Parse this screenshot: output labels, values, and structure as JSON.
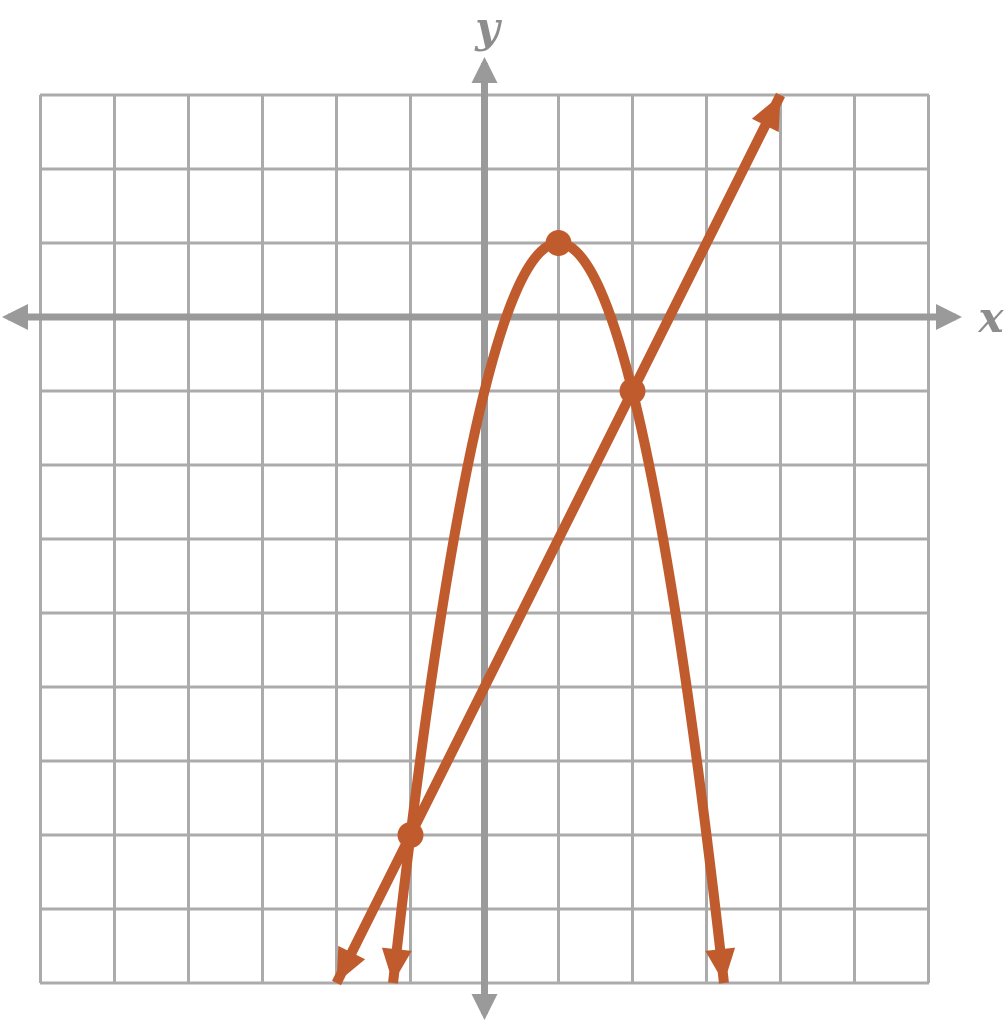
{
  "figure": {
    "colors": {
      "curve": "#c05b2e",
      "grid": "#ababab",
      "axis": "#9a9a9a",
      "axis_label": "#8d8d8d",
      "background": "#ffffff"
    }
  },
  "chart_data": {
    "type": "line",
    "title": "",
    "xlabel": "x",
    "ylabel": "y",
    "grid": true,
    "legend": false,
    "x_range": [
      -6,
      6
    ],
    "y_range": [
      -9,
      3
    ],
    "grid_step": 1,
    "axes_through_origin": true,
    "axis_arrows_both_ends": true,
    "series": [
      {
        "name": "parabola",
        "kind": "quadratic",
        "equation": "y = -2(x - 1)^2 + 1",
        "vertex": {
          "x": 1,
          "y": 1
        },
        "leading_coefficient": -2,
        "x_domain": [
          -1.2361,
          3.2361
        ],
        "arrow_start": true,
        "arrow_end": true,
        "points_on_curve": [
          [
            -1,
            -7
          ],
          [
            0,
            -1
          ],
          [
            1,
            1
          ],
          [
            2,
            -1
          ],
          [
            3,
            -7
          ]
        ]
      },
      {
        "name": "line",
        "kind": "linear",
        "equation": "y = 2x - 5",
        "slope": 2,
        "y_intercept": -5,
        "x_domain": [
          -2,
          4
        ],
        "arrow_start": true,
        "arrow_end": true,
        "points_on_curve": [
          [
            -2,
            -9
          ],
          [
            0,
            -5
          ],
          [
            2,
            -1
          ],
          [
            4,
            3
          ]
        ]
      }
    ],
    "marked_points": [
      {
        "x": 1,
        "y": 1,
        "description": "vertex of parabola"
      },
      {
        "x": 2,
        "y": -1,
        "description": "intersection of parabola and line"
      },
      {
        "x": -1,
        "y": -7,
        "description": "intersection of parabola and line"
      }
    ]
  }
}
